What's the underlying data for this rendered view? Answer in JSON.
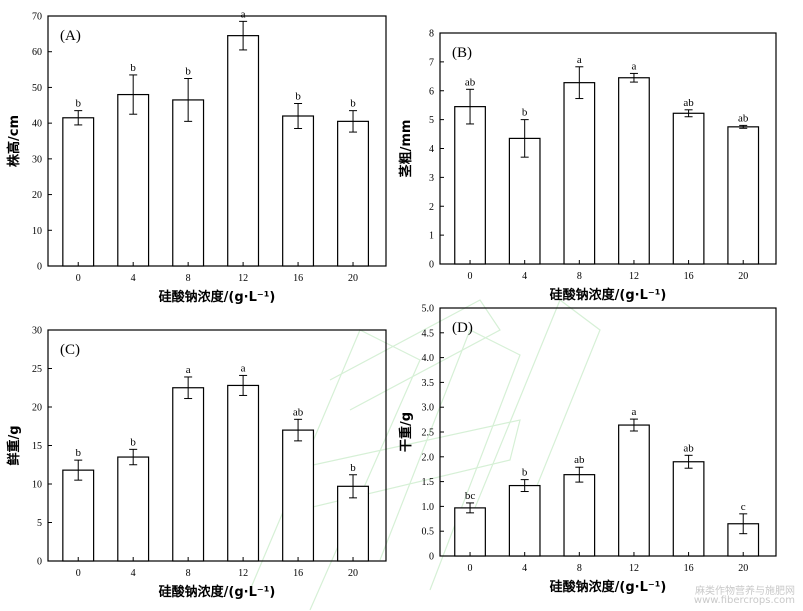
{
  "chart_data": [
    {
      "type": "bar",
      "panel_label": "(A)",
      "categories": [
        "0",
        "4",
        "8",
        "12",
        "16",
        "20"
      ],
      "values": [
        41.5,
        48,
        46.5,
        64.5,
        42,
        40.5
      ],
      "errors": [
        2,
        5.5,
        6,
        4,
        3.5,
        3
      ],
      "letters": [
        "b",
        "b",
        "b",
        "a",
        "b",
        "b"
      ],
      "ylim": [
        0,
        70
      ],
      "yticks": [
        "0",
        "10",
        "20",
        "30",
        "40",
        "50",
        "60",
        "70"
      ],
      "ylabel": "株高/cm",
      "xlabel": "硅酸钠浓度/(g·L⁻¹)"
    },
    {
      "type": "bar",
      "panel_label": "(B)",
      "categories": [
        "0",
        "4",
        "8",
        "12",
        "16",
        "20"
      ],
      "values": [
        5.45,
        4.35,
        6.28,
        6.45,
        5.22,
        4.75
      ],
      "errors": [
        0.6,
        0.65,
        0.55,
        0.15,
        0.12,
        0.05
      ],
      "letters": [
        "ab",
        "b",
        "a",
        "a",
        "ab",
        "ab"
      ],
      "ylim": [
        0,
        8
      ],
      "yticks": [
        "0",
        "1",
        "2",
        "3",
        "4",
        "5",
        "6",
        "7",
        "8"
      ],
      "ylabel": "茎粗/mm",
      "xlabel": "硅酸钠浓度/(g·L⁻¹)"
    },
    {
      "type": "bar",
      "panel_label": "(C)",
      "categories": [
        "0",
        "4",
        "8",
        "12",
        "16",
        "20"
      ],
      "values": [
        11.8,
        13.5,
        22.5,
        22.8,
        17,
        9.7
      ],
      "errors": [
        1.3,
        1.0,
        1.4,
        1.3,
        1.4,
        1.5
      ],
      "letters": [
        "b",
        "b",
        "a",
        "a",
        "ab",
        "b"
      ],
      "ylim": [
        0,
        30
      ],
      "yticks": [
        "0",
        "5",
        "10",
        "15",
        "20",
        "25",
        "30"
      ],
      "ylabel": "鲜重/g",
      "xlabel": "硅酸钠浓度/(g·L⁻¹)"
    },
    {
      "type": "bar",
      "panel_label": "(D)",
      "categories": [
        "0",
        "4",
        "8",
        "12",
        "16",
        "20"
      ],
      "values": [
        0.97,
        1.42,
        1.64,
        2.64,
        1.9,
        0.65
      ],
      "errors": [
        0.1,
        0.12,
        0.15,
        0.12,
        0.13,
        0.2
      ],
      "letters": [
        "bc",
        "b",
        "ab",
        "a",
        "ab",
        "c"
      ],
      "ylim": [
        0,
        5
      ],
      "yticks": [
        "0",
        "0.5",
        "1.0",
        "1.5",
        "2.0",
        "2.5",
        "3.0",
        "3.5",
        "4.0",
        "4.5",
        "5.0"
      ],
      "ylabel": "干重/g",
      "xlabel": "硅酸钠浓度/(g·L⁻¹)"
    }
  ],
  "watermark": {
    "line1": "麻类作物营养与施肥网",
    "line2": "www.fibercrops.com"
  }
}
